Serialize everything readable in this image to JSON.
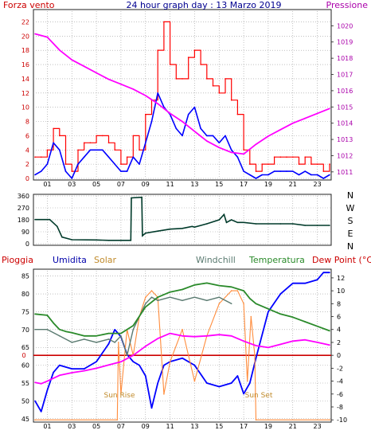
{
  "header": {
    "left_label": "Forza vento",
    "title": "24 hour graph day : 13 Marzo 2019",
    "right_label": "Pressione"
  },
  "bottom_header": {
    "pioggia": "Pioggia",
    "umidita": "Umidita",
    "solar": "Solar",
    "windchill": "Windchill",
    "temperatura": "Temperatura",
    "dewpoint": "Dew Point (°C)"
  },
  "annotations": {
    "sunrise": "Sun Rise",
    "sunset": "Sun Set"
  },
  "compass": [
    "N",
    "W",
    "S",
    "E",
    "N"
  ],
  "colors": {
    "wind_gust": "#ff0000",
    "wind_avg": "#0000ff",
    "pressure": "#ff00ff",
    "direction": "#003a2a",
    "rain": "#cc0000",
    "humidity": "#0000ff",
    "solar": "#ff8c3c",
    "windchill": "#5a7a70",
    "temperature": "#2a8a2a",
    "dewpoint": "#ff00ff",
    "axis_left": "#cc0000",
    "axis_right": "#aa00aa",
    "grid": "#9a9a9a"
  },
  "chart_data": [
    {
      "type": "line",
      "id": "wind-pressure",
      "x_ticks": [
        "01",
        "03",
        "05",
        "07",
        "09",
        "11",
        "13",
        "15",
        "17",
        "19",
        "21",
        "23"
      ],
      "y_left_ticks": [
        0,
        2,
        4,
        6,
        8,
        10,
        12,
        14,
        16,
        18,
        20,
        22
      ],
      "y_right_ticks": [
        1011,
        1012,
        1013,
        1014,
        1015,
        1016,
        1017,
        1018,
        1019,
        1020
      ],
      "ylim_left": [
        0,
        23.5
      ],
      "ylim_right": [
        1010.6,
        1020.9
      ],
      "grid": true,
      "series": [
        {
          "name": "Forza vento",
          "axis": "left",
          "style": "gust",
          "x": [
            0.0,
            0.5,
            1.0,
            1.5,
            2.0,
            2.5,
            3.0,
            3.5,
            4.0,
            4.5,
            5.0,
            5.5,
            6.0,
            6.5,
            7.0,
            7.5,
            8.0,
            8.5,
            9.0,
            9.5,
            10.0,
            10.5,
            11.0,
            11.5,
            12.0,
            12.5,
            13.0,
            13.5,
            14.0,
            14.5,
            15.0,
            15.5,
            16.0,
            16.5,
            17.0,
            17.5,
            18.0,
            18.5,
            19.0,
            19.5,
            20.0,
            20.5,
            21.0,
            21.5,
            22.0,
            22.5,
            23.0,
            23.5,
            24.0
          ],
          "y": [
            3,
            3,
            4,
            7,
            6,
            2,
            1,
            4,
            5,
            5,
            6,
            6,
            5,
            4,
            2,
            3,
            6,
            4,
            9,
            11,
            18,
            22,
            16,
            14,
            14,
            17,
            18,
            16,
            14,
            13,
            12,
            14,
            11,
            9,
            4,
            2,
            1,
            2,
            2,
            3,
            3,
            3,
            3,
            2,
            3,
            2,
            2,
            1,
            2
          ]
        },
        {
          "name": "",
          "axis": "left",
          "style": "avg",
          "x": [
            0.0,
            0.5,
            1.0,
            1.5,
            2.0,
            2.5,
            3.0,
            3.5,
            4.0,
            4.5,
            5.0,
            5.5,
            6.0,
            6.5,
            7.0,
            7.5,
            8.0,
            8.5,
            9.0,
            9.5,
            10.0,
            10.5,
            11.0,
            11.5,
            12.0,
            12.5,
            13.0,
            13.5,
            14.0,
            14.5,
            15.0,
            15.5,
            16.0,
            16.5,
            17.0,
            17.5,
            18.0,
            18.5,
            19.0,
            19.5,
            20.0,
            20.5,
            21.0,
            21.5,
            22.0,
            22.5,
            23.0,
            23.5,
            24.0
          ],
          "y": [
            0.5,
            1,
            2,
            5,
            4,
            1,
            0,
            2,
            3,
            4,
            4,
            4,
            3,
            2,
            1,
            1,
            3,
            2,
            5,
            8,
            12,
            10,
            9,
            7,
            6,
            9,
            10,
            7,
            6,
            6,
            5,
            6,
            4,
            3,
            1,
            0.5,
            0,
            0.5,
            0.5,
            1,
            1,
            1,
            1,
            0.5,
            1,
            0.5,
            0.5,
            0,
            0.5
          ]
        },
        {
          "name": "Pressione",
          "axis": "right",
          "style": "pressure",
          "x": [
            0,
            1,
            2,
            3,
            4,
            5,
            6,
            7,
            8,
            9,
            10,
            11,
            12,
            13,
            14,
            15,
            16,
            17,
            18,
            19,
            20,
            21,
            22,
            23,
            24
          ],
          "y": [
            1019.5,
            1019.3,
            1018.5,
            1017.9,
            1017.5,
            1017.1,
            1016.7,
            1016.4,
            1016.1,
            1015.7,
            1015.2,
            1014.6,
            1014.1,
            1013.5,
            1012.9,
            1012.5,
            1012.2,
            1012.1,
            1012.7,
            1013.2,
            1013.6,
            1014.0,
            1014.3,
            1014.6,
            1014.9
          ]
        }
      ]
    },
    {
      "type": "line",
      "id": "wind-direction",
      "x_ticks": [
        "01",
        "03",
        "05",
        "07",
        "09",
        "11",
        "13",
        "15",
        "17",
        "19",
        "21",
        "23"
      ],
      "y_ticks": [
        0,
        90,
        180,
        270,
        360
      ],
      "ylim": [
        0,
        360
      ],
      "grid": true,
      "series": [
        {
          "name": "",
          "x": [
            0.0,
            1.2,
            1.8,
            2.2,
            3.0,
            5.0,
            6.0,
            7.0,
            7.8,
            7.85,
            8.7,
            8.75,
            9.0,
            10.0,
            11.0,
            12.0,
            12.8,
            13.0,
            14.0,
            15.0,
            15.4,
            15.6,
            16.0,
            16.5,
            17.0,
            18.0,
            20.0,
            21.0,
            22.0,
            23.0,
            24.0
          ],
          "y": [
            182,
            182,
            130,
            50,
            30,
            28,
            25,
            25,
            25,
            345,
            350,
            60,
            80,
            95,
            110,
            115,
            130,
            125,
            150,
            180,
            220,
            160,
            180,
            160,
            160,
            150,
            150,
            150,
            138,
            138,
            138
          ]
        }
      ]
    },
    {
      "type": "line",
      "id": "humidity-temperature",
      "x_ticks": [
        "01",
        "03",
        "05",
        "07",
        "09",
        "11",
        "13",
        "15",
        "17",
        "19",
        "21",
        "23"
      ],
      "y_left_ticks": [
        45,
        50,
        55,
        60,
        65,
        70,
        75,
        80,
        85
      ],
      "y_right_ticks": [
        -10,
        -8,
        -6,
        -4,
        -2,
        0,
        2,
        4,
        6,
        8,
        10,
        12
      ],
      "ylim_left": [
        44.5,
        86.5
      ],
      "ylim_right": [
        -10.1,
        13.1
      ],
      "rain_value": 0,
      "grid": true,
      "series": [
        {
          "name": "Umidita",
          "axis": "left",
          "x": [
            0,
            0.5,
            1,
            1.5,
            2,
            3,
            4,
            5,
            6,
            6.5,
            7,
            7.5,
            8,
            8.5,
            9,
            9.5,
            10,
            10.5,
            11,
            12,
            13,
            14,
            15,
            16,
            16.5,
            17,
            17.5,
            18,
            19,
            20,
            21,
            22,
            23,
            23.5,
            24
          ],
          "y": [
            50,
            47,
            53,
            58,
            60,
            59,
            59,
            61,
            66,
            70,
            68,
            63,
            61,
            60,
            57,
            48,
            55,
            60,
            61,
            62,
            60,
            55,
            54,
            55,
            57,
            52,
            55,
            62,
            75,
            80,
            83,
            83,
            84,
            86,
            86
          ]
        },
        {
          "name": "Solar",
          "axis": "right",
          "style": "solar",
          "x": [
            0,
            6.7,
            6.8,
            7.0,
            7.5,
            8.0,
            8.5,
            9.0,
            9.5,
            10.0,
            10.5,
            11,
            12,
            13,
            14,
            15,
            16,
            16.5,
            17,
            17.3,
            17.6,
            17.9,
            18.0,
            24
          ],
          "y": [
            -10,
            -10,
            2,
            -6,
            4,
            0,
            6,
            9,
            10,
            9,
            -6,
            -1,
            4,
            -4,
            3,
            8,
            10,
            10,
            8,
            -4,
            6,
            0,
            -10,
            -10
          ]
        },
        {
          "name": "Windchill",
          "axis": "right",
          "x": [
            0,
            1,
            2,
            3,
            4,
            5,
            6,
            6.5,
            7,
            7.5,
            8,
            8.5,
            9,
            9.5,
            10,
            11,
            12,
            13,
            14,
            15,
            16
          ],
          "y": [
            4,
            4,
            3,
            2,
            2.5,
            2,
            2.5,
            2,
            3,
            0,
            4,
            6,
            8,
            9,
            8.5,
            9,
            8.5,
            9,
            8.5,
            9,
            8
          ]
        },
        {
          "name": "Temperatura",
          "axis": "right",
          "x": [
            0,
            1,
            1.5,
            2,
            2.5,
            3,
            4,
            5,
            6,
            7,
            8,
            9,
            10,
            11,
            12,
            13,
            14,
            15,
            16,
            17,
            17.5,
            18,
            19,
            20,
            21,
            22,
            23,
            24
          ],
          "y": [
            6.4,
            6.2,
            5,
            4,
            3.7,
            3.5,
            3.0,
            3.0,
            3.4,
            3.4,
            4.6,
            7.5,
            9.0,
            9.8,
            10.2,
            10.9,
            11.2,
            10.8,
            10.6,
            10.0,
            8.8,
            8.0,
            7.2,
            6.4,
            5.9,
            5.2,
            4.5,
            3.8
          ]
        },
        {
          "name": "Dew Point (°C)",
          "axis": "right",
          "x": [
            0,
            0.5,
            1,
            2,
            3,
            4,
            5,
            6,
            7,
            8,
            9,
            10,
            11,
            12,
            13,
            14,
            15,
            16,
            17,
            18,
            19,
            20,
            21,
            22,
            23,
            24
          ],
          "y": [
            -4.2,
            -4.4,
            -4.0,
            -3.1,
            -2.7,
            -2.4,
            -2.0,
            -1.5,
            -1.0,
            0.0,
            1.4,
            2.6,
            3.4,
            3.0,
            2.9,
            3.0,
            3.2,
            3.0,
            2.2,
            1.5,
            1.2,
            1.7,
            2.2,
            2.4,
            2.0,
            1.6
          ]
        }
      ]
    }
  ]
}
